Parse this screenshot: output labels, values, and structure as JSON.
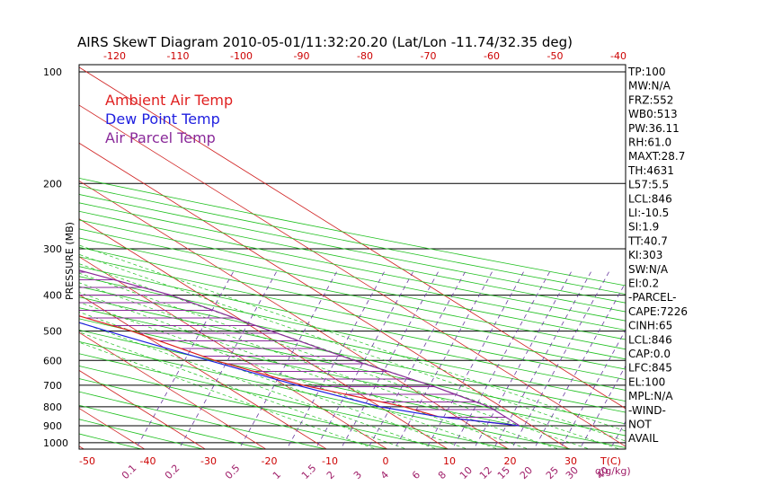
{
  "chart_data": {
    "type": "line",
    "title": "AIRS SkewT Diagram 2010-05-01/11:32:20.20 (Lat/Lon -11.74/32.35 deg)",
    "ylabel": "PRESSURE (MB)",
    "xlabel_bottom_unit": "T(C)",
    "mixing_ratio_unit": "q(g/kg)",
    "pressure_ticks": [
      100,
      200,
      300,
      400,
      500,
      600,
      700,
      800,
      900,
      1000
    ],
    "pressure_range": [
      100,
      1050
    ],
    "bottom_temp_ticks": [
      -50,
      -40,
      -30,
      -20,
      -10,
      0,
      10,
      20,
      30
    ],
    "top_temp_ticks": [
      -120,
      -110,
      -100,
      -90,
      -80,
      -70,
      -60,
      -50,
      -40
    ],
    "mixing_ratio_ticks": [
      "0.1",
      "0.2",
      "0.5",
      "1",
      "1.5",
      "2",
      "3",
      "4",
      "6",
      "8",
      "10",
      "12",
      "15",
      "20",
      "25",
      "30",
      "40"
    ],
    "legend": [
      {
        "name": "Ambient Air Temp",
        "color": "#e02020"
      },
      {
        "name": "Dew Point Temp",
        "color": "#2020e0"
      },
      {
        "name": "Air Parcel Temp",
        "color": "#8a2a9a"
      }
    ],
    "series": [
      {
        "name": "Ambient Air Temp",
        "color": "#e02020",
        "pressure": [
          100,
          150,
          200,
          250,
          300,
          400,
          500,
          600,
          700,
          800,
          850,
          900
        ],
        "temp_c": [
          -71,
          -58,
          -53,
          -44,
          -35,
          -22,
          -11,
          -5,
          3,
          14,
          17,
          28
        ]
      },
      {
        "name": "Dew Point Temp",
        "color": "#2020e0",
        "pressure": [
          100,
          150,
          200,
          250,
          300,
          400,
          500,
          600,
          700,
          800,
          850,
          900
        ],
        "temp_c": [
          -82,
          -75,
          -62,
          -52,
          -42,
          -25,
          -15,
          -6,
          2,
          10,
          17,
          28
        ]
      },
      {
        "name": "Air Parcel Temp",
        "color": "#8a2a9a",
        "pressure": [
          100,
          150,
          200,
          250,
          300,
          400,
          500,
          600,
          700,
          800,
          850,
          900
        ],
        "temp_c": [
          -60,
          -44,
          -33,
          -21,
          -11,
          5,
          12,
          18,
          24,
          28,
          28,
          28
        ]
      }
    ],
    "indices": [
      "TP:100",
      "MW:N/A",
      "FRZ:552",
      "WB0:513",
      "PW:36.11",
      "RH:61.0",
      "MAXT:28.7",
      "TH:4631",
      "L57:5.5",
      "LCL:846",
      "LI:-10.5",
      "SI:1.9",
      "TT:40.7",
      "KI:303",
      "SW:N/A",
      "EI:0.2",
      "-PARCEL-",
      "CAPE:7226",
      "CINH:65",
      "LCL:846",
      "CAP:0.0",
      "LFC:845",
      "EL:100",
      "MPL:N/A",
      "-WIND-",
      "NOT",
      "AVAIL"
    ]
  },
  "colors": {
    "isotherm": "#d02020",
    "dry_adiabat": "#20c020",
    "moist_adiabat": "#20c020",
    "mixing_ratio": "#6a3aa0",
    "isobar": "#000000",
    "hatch": "#8a2a9a"
  }
}
